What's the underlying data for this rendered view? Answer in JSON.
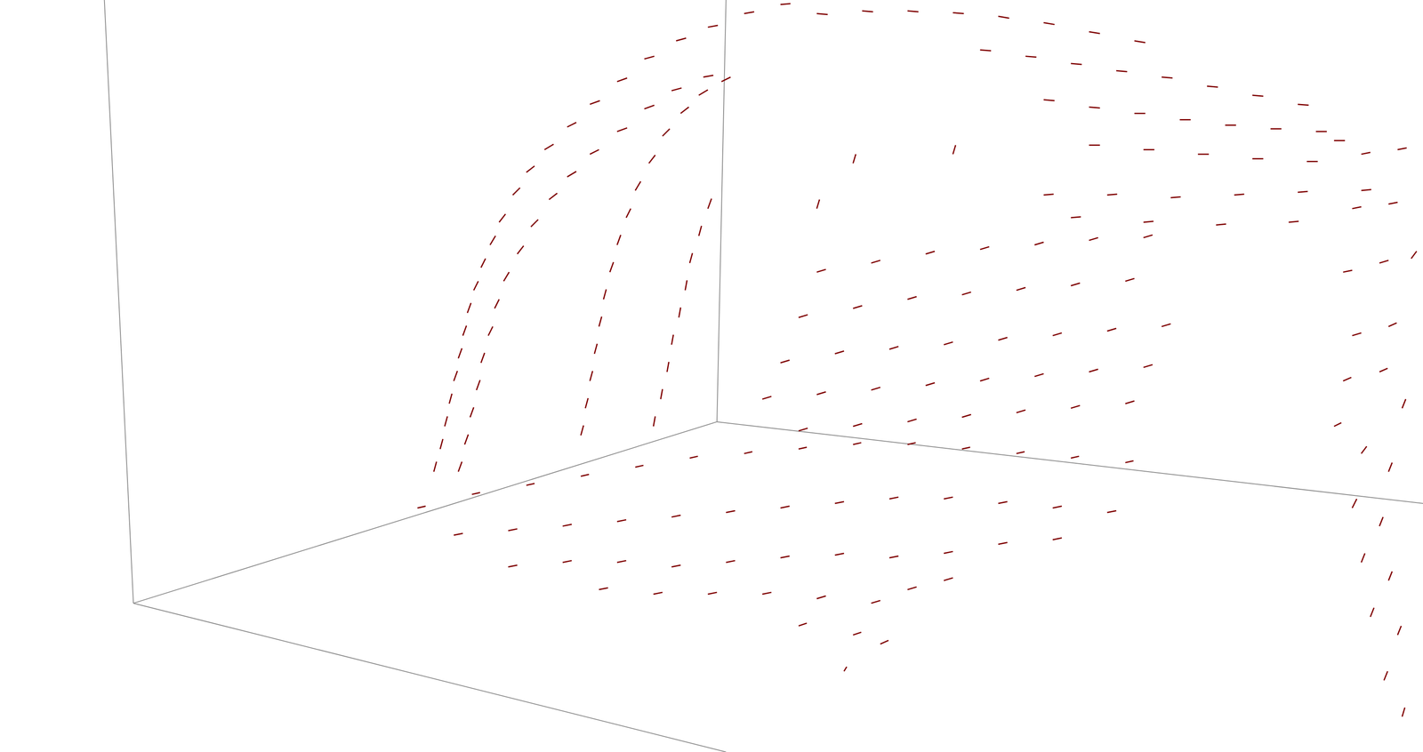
{
  "chart_data": {
    "type": "quiver",
    "color": "#7f0000",
    "grid": false,
    "tick_labels": false,
    "xlim": [
      0,
      1568
    ],
    "ylim": [
      0,
      829
    ],
    "box_edges": [
      [
        115,
        0,
        147,
        665
      ],
      [
        147,
        665,
        800,
        829
      ],
      [
        147,
        665,
        790,
        465
      ],
      [
        790,
        465,
        800,
        0
      ],
      [
        790,
        465,
        1568,
        555
      ]
    ],
    "vectors": [
      [
        478,
        520,
        3,
        -11
      ],
      [
        485,
        495,
        3,
        -11
      ],
      [
        490,
        470,
        3,
        -11
      ],
      [
        495,
        445,
        3,
        -11
      ],
      [
        500,
        420,
        4,
        -11
      ],
      [
        505,
        395,
        4,
        -11
      ],
      [
        510,
        370,
        4,
        -11
      ],
      [
        515,
        345,
        4,
        -11
      ],
      [
        522,
        320,
        5,
        -10
      ],
      [
        530,
        295,
        5,
        -10
      ],
      [
        540,
        270,
        6,
        -10
      ],
      [
        550,
        245,
        7,
        -9
      ],
      [
        565,
        215,
        8,
        -8
      ],
      [
        580,
        190,
        9,
        -7
      ],
      [
        600,
        165,
        10,
        -6
      ],
      [
        625,
        140,
        10,
        -5
      ],
      [
        650,
        115,
        11,
        -4
      ],
      [
        680,
        90,
        11,
        -4
      ],
      [
        710,
        65,
        11,
        -3
      ],
      [
        745,
        45,
        11,
        -3
      ],
      [
        780,
        30,
        11,
        -2
      ],
      [
        820,
        15,
        11,
        -2
      ],
      [
        860,
        5,
        11,
        -1
      ],
      [
        505,
        520,
        4,
        -11
      ],
      [
        512,
        490,
        4,
        -11
      ],
      [
        518,
        460,
        4,
        -11
      ],
      [
        525,
        430,
        4,
        -11
      ],
      [
        530,
        400,
        4,
        -11
      ],
      [
        538,
        370,
        5,
        -10
      ],
      [
        545,
        340,
        5,
        -10
      ],
      [
        555,
        310,
        6,
        -10
      ],
      [
        570,
        280,
        7,
        -9
      ],
      [
        585,
        250,
        8,
        -8
      ],
      [
        605,
        220,
        9,
        -7
      ],
      [
        625,
        195,
        10,
        -6
      ],
      [
        650,
        170,
        10,
        -5
      ],
      [
        680,
        145,
        11,
        -4
      ],
      [
        710,
        120,
        11,
        -4
      ],
      [
        740,
        100,
        11,
        -3
      ],
      [
        775,
        85,
        11,
        -2
      ],
      [
        640,
        480,
        3,
        -11
      ],
      [
        645,
        450,
        3,
        -11
      ],
      [
        650,
        420,
        3,
        -11
      ],
      [
        655,
        390,
        3,
        -11
      ],
      [
        660,
        360,
        3,
        -11
      ],
      [
        665,
        330,
        3,
        -11
      ],
      [
        672,
        300,
        4,
        -11
      ],
      [
        680,
        270,
        4,
        -11
      ],
      [
        690,
        240,
        5,
        -10
      ],
      [
        700,
        210,
        6,
        -10
      ],
      [
        715,
        180,
        7,
        -9
      ],
      [
        730,
        150,
        8,
        -8
      ],
      [
        750,
        125,
        9,
        -7
      ],
      [
        770,
        105,
        10,
        -6
      ],
      [
        795,
        90,
        10,
        -5
      ],
      [
        720,
        470,
        2,
        -11
      ],
      [
        728,
        440,
        2,
        -11
      ],
      [
        735,
        410,
        2,
        -11
      ],
      [
        740,
        380,
        2,
        -11
      ],
      [
        748,
        350,
        2,
        -11
      ],
      [
        755,
        320,
        2,
        -11
      ],
      [
        760,
        290,
        3,
        -11
      ],
      [
        770,
        260,
        3,
        -11
      ],
      [
        780,
        230,
        4,
        -11
      ],
      [
        900,
        15,
        12,
        1
      ],
      [
        950,
        12,
        12,
        1
      ],
      [
        1000,
        12,
        12,
        1
      ],
      [
        1050,
        14,
        12,
        1
      ],
      [
        1100,
        18,
        12,
        2
      ],
      [
        1150,
        25,
        12,
        2
      ],
      [
        1200,
        35,
        12,
        2
      ],
      [
        1250,
        45,
        12,
        2
      ],
      [
        1080,
        55,
        12,
        1
      ],
      [
        1130,
        62,
        12,
        1
      ],
      [
        1180,
        70,
        12,
        1
      ],
      [
        1230,
        78,
        12,
        1
      ],
      [
        1280,
        85,
        12,
        1
      ],
      [
        1330,
        95,
        12,
        1
      ],
      [
        1380,
        105,
        12,
        1
      ],
      [
        1430,
        115,
        12,
        1
      ],
      [
        1150,
        110,
        12,
        1
      ],
      [
        1200,
        118,
        12,
        1
      ],
      [
        1250,
        125,
        12,
        0
      ],
      [
        1300,
        132,
        12,
        0
      ],
      [
        1350,
        138,
        12,
        0
      ],
      [
        1400,
        142,
        12,
        0
      ],
      [
        1450,
        145,
        12,
        0
      ],
      [
        1470,
        155,
        12,
        0
      ],
      [
        1200,
        160,
        12,
        0
      ],
      [
        1260,
        165,
        12,
        0
      ],
      [
        1320,
        170,
        12,
        0
      ],
      [
        1380,
        175,
        12,
        0
      ],
      [
        1440,
        178,
        12,
        0
      ],
      [
        1150,
        215,
        11,
        -1
      ],
      [
        1220,
        215,
        11,
        -1
      ],
      [
        1290,
        218,
        11,
        -1
      ],
      [
        1360,
        215,
        11,
        -1
      ],
      [
        1430,
        212,
        11,
        -1
      ],
      [
        1500,
        210,
        11,
        -1
      ],
      [
        1180,
        240,
        11,
        -1
      ],
      [
        1260,
        245,
        11,
        -1
      ],
      [
        1340,
        248,
        11,
        -1
      ],
      [
        1420,
        245,
        11,
        -1
      ],
      [
        900,
        230,
        3,
        -10
      ],
      [
        940,
        180,
        3,
        -10
      ],
      [
        1050,
        170,
        3,
        -10
      ],
      [
        900,
        300,
        10,
        -3
      ],
      [
        960,
        290,
        10,
        -3
      ],
      [
        1020,
        280,
        10,
        -3
      ],
      [
        1080,
        275,
        10,
        -3
      ],
      [
        1140,
        270,
        10,
        -3
      ],
      [
        1200,
        265,
        10,
        -3
      ],
      [
        1260,
        262,
        10,
        -3
      ],
      [
        880,
        350,
        10,
        -3
      ],
      [
        940,
        340,
        10,
        -3
      ],
      [
        1000,
        330,
        10,
        -3
      ],
      [
        1060,
        325,
        10,
        -3
      ],
      [
        1120,
        320,
        10,
        -3
      ],
      [
        1180,
        315,
        10,
        -3
      ],
      [
        1240,
        310,
        10,
        -3
      ],
      [
        860,
        400,
        10,
        -3
      ],
      [
        920,
        390,
        10,
        -3
      ],
      [
        980,
        385,
        10,
        -3
      ],
      [
        1040,
        380,
        10,
        -3
      ],
      [
        1100,
        375,
        10,
        -3
      ],
      [
        1160,
        370,
        10,
        -3
      ],
      [
        1220,
        365,
        10,
        -3
      ],
      [
        1280,
        360,
        10,
        -3
      ],
      [
        840,
        440,
        10,
        -3
      ],
      [
        900,
        435,
        10,
        -3
      ],
      [
        960,
        430,
        10,
        -3
      ],
      [
        1020,
        425,
        10,
        -3
      ],
      [
        1080,
        420,
        10,
        -3
      ],
      [
        1140,
        415,
        10,
        -3
      ],
      [
        1200,
        410,
        10,
        -3
      ],
      [
        1260,
        405,
        10,
        -3
      ],
      [
        880,
        475,
        10,
        -3
      ],
      [
        940,
        470,
        10,
        -3
      ],
      [
        1000,
        465,
        10,
        -3
      ],
      [
        1060,
        460,
        10,
        -3
      ],
      [
        1120,
        455,
        10,
        -3
      ],
      [
        1180,
        450,
        10,
        -3
      ],
      [
        1240,
        445,
        10,
        -3
      ],
      [
        460,
        560,
        9,
        -2
      ],
      [
        520,
        545,
        9,
        -2
      ],
      [
        580,
        535,
        9,
        -2
      ],
      [
        640,
        525,
        9,
        -2
      ],
      [
        700,
        515,
        9,
        -2
      ],
      [
        760,
        505,
        9,
        -2
      ],
      [
        820,
        500,
        9,
        -2
      ],
      [
        880,
        495,
        9,
        -2
      ],
      [
        940,
        490,
        9,
        -2
      ],
      [
        1000,
        490,
        9,
        -2
      ],
      [
        1060,
        495,
        9,
        -2
      ],
      [
        1120,
        500,
        9,
        -2
      ],
      [
        1180,
        505,
        9,
        -2
      ],
      [
        1240,
        510,
        9,
        -2
      ],
      [
        500,
        590,
        10,
        -2
      ],
      [
        560,
        585,
        10,
        -2
      ],
      [
        620,
        580,
        10,
        -2
      ],
      [
        680,
        575,
        10,
        -2
      ],
      [
        740,
        570,
        10,
        -2
      ],
      [
        800,
        565,
        10,
        -2
      ],
      [
        860,
        560,
        10,
        -2
      ],
      [
        920,
        555,
        10,
        -2
      ],
      [
        980,
        550,
        10,
        -2
      ],
      [
        1040,
        550,
        10,
        -2
      ],
      [
        1100,
        555,
        10,
        -2
      ],
      [
        1160,
        560,
        10,
        -2
      ],
      [
        1220,
        565,
        10,
        -2
      ],
      [
        560,
        625,
        10,
        -2
      ],
      [
        620,
        620,
        10,
        -2
      ],
      [
        680,
        620,
        10,
        -2
      ],
      [
        740,
        625,
        10,
        -2
      ],
      [
        800,
        620,
        10,
        -2
      ],
      [
        860,
        615,
        10,
        -2
      ],
      [
        920,
        612,
        10,
        -2
      ],
      [
        980,
        615,
        10,
        -2
      ],
      [
        1040,
        610,
        10,
        -2
      ],
      [
        1100,
        600,
        10,
        -2
      ],
      [
        1160,
        595,
        10,
        -2
      ],
      [
        660,
        650,
        10,
        -2
      ],
      [
        720,
        655,
        10,
        -2
      ],
      [
        780,
        655,
        10,
        -2
      ],
      [
        840,
        655,
        10,
        -2
      ],
      [
        900,
        660,
        10,
        -3
      ],
      [
        960,
        665,
        10,
        -3
      ],
      [
        1000,
        650,
        10,
        -3
      ],
      [
        1040,
        640,
        10,
        -3
      ],
      [
        880,
        690,
        9,
        -3
      ],
      [
        940,
        700,
        9,
        -3
      ],
      [
        970,
        710,
        9,
        -4
      ],
      [
        930,
        740,
        3,
        -5
      ],
      [
        1500,
        170,
        10,
        -2
      ],
      [
        1540,
        165,
        10,
        -2
      ],
      [
        1490,
        230,
        10,
        -2
      ],
      [
        1530,
        225,
        10,
        -2
      ],
      [
        1480,
        300,
        10,
        -2
      ],
      [
        1520,
        290,
        10,
        -3
      ],
      [
        1555,
        285,
        6,
        -8
      ],
      [
        1490,
        370,
        10,
        -3
      ],
      [
        1530,
        360,
        9,
        -4
      ],
      [
        1480,
        420,
        9,
        -4
      ],
      [
        1520,
        410,
        9,
        -4
      ],
      [
        1545,
        450,
        4,
        -10
      ],
      [
        1470,
        470,
        8,
        -4
      ],
      [
        1500,
        500,
        6,
        -8
      ],
      [
        1530,
        520,
        4,
        -10
      ],
      [
        1490,
        560,
        5,
        -10
      ],
      [
        1520,
        580,
        4,
        -10
      ],
      [
        1500,
        620,
        4,
        -10
      ],
      [
        1530,
        640,
        4,
        -10
      ],
      [
        1510,
        680,
        4,
        -10
      ],
      [
        1540,
        700,
        4,
        -10
      ],
      [
        1525,
        750,
        4,
        -10
      ],
      [
        1545,
        790,
        3,
        -10
      ]
    ]
  }
}
